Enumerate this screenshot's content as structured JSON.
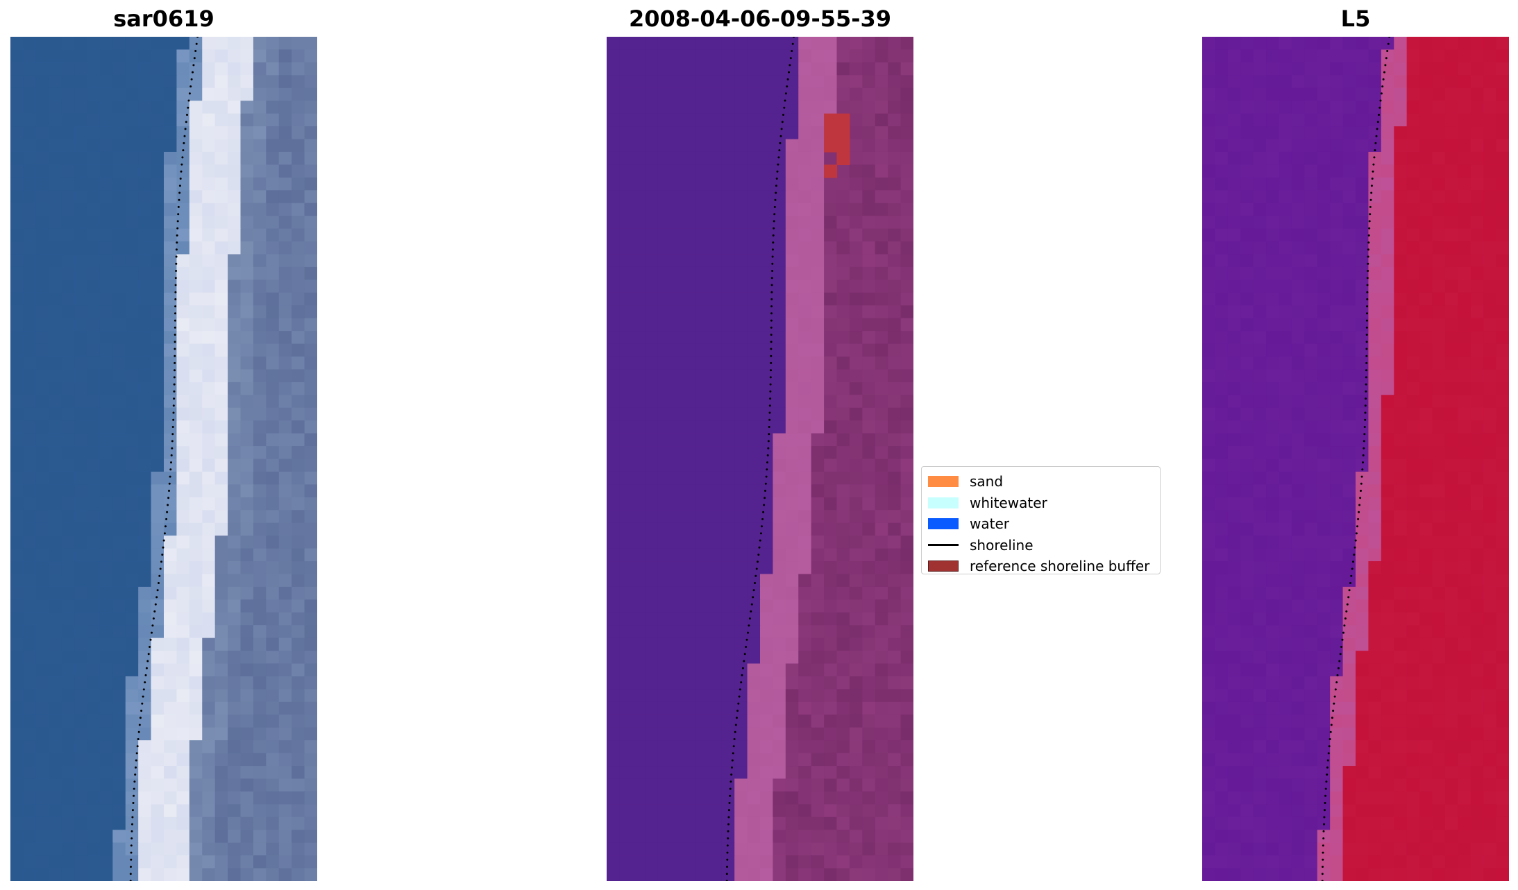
{
  "panels": [
    {
      "title": "sar0619",
      "icon": "rgb-satellite-image"
    },
    {
      "title": "2008-04-06-09-55-39",
      "icon": "classified-image"
    },
    {
      "title": "L5",
      "icon": "mndwi-index-image"
    }
  ],
  "legend": {
    "items": [
      {
        "label": "sand",
        "color": "#ff8c42",
        "kind": "patch"
      },
      {
        "label": "whitewater",
        "color": "#c7ffff",
        "kind": "patch"
      },
      {
        "label": "water",
        "color": "#0a5bff",
        "kind": "patch"
      },
      {
        "label": "shoreline",
        "color": "#000000",
        "kind": "line"
      },
      {
        "label": "reference shoreline buffer",
        "color": "#a03232",
        "kind": "patch"
      }
    ]
  },
  "colors": {
    "rgb_water": "#2b5a91",
    "rgb_whitewater": "#e8eaf4",
    "rgb_land": "#5d6f9a",
    "class_water": "#55238f",
    "class_sand_tint": "#b1599b",
    "class_land": "#7a2d6b",
    "class_buffer": "#c0363e",
    "index_water": "#6b1f9a",
    "index_transition": "#c44b8a",
    "index_land": "#c4123a"
  }
}
